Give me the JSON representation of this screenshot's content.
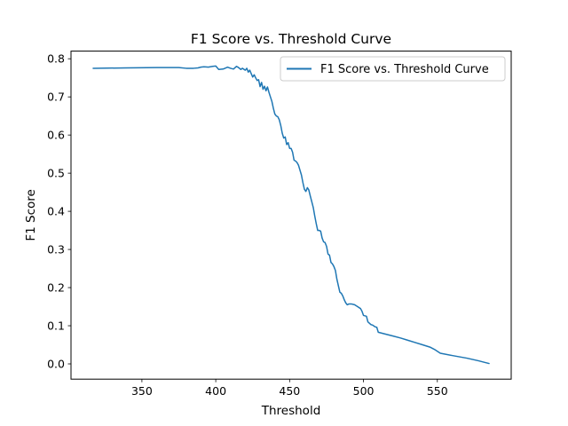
{
  "chart_data": {
    "type": "line",
    "title": "F1 Score vs. Threshold Curve",
    "xlabel": "Threshold",
    "ylabel": "F1 Score",
    "xlim": [
      302,
      600
    ],
    "ylim": [
      -0.04,
      0.82
    ],
    "xticks": [
      350,
      400,
      450,
      500,
      550
    ],
    "xtick_labels": [
      "350",
      "400",
      "450",
      "500",
      "550"
    ],
    "yticks": [
      0.0,
      0.1,
      0.2,
      0.3,
      0.4,
      0.5,
      0.6,
      0.7,
      0.8
    ],
    "ytick_labels": [
      "0.0",
      "0.1",
      "0.2",
      "0.3",
      "0.4",
      "0.5",
      "0.6",
      "0.7",
      "0.8"
    ],
    "grid": false,
    "legend_position": "top-right",
    "series": [
      {
        "name": "F1 Score vs. Threshold Curve",
        "color": "#1f77b4",
        "x": [
          317,
          340,
          360,
          375,
          380,
          385,
          388,
          390,
          392,
          395,
          398,
          400,
          402,
          405,
          408,
          410,
          412,
          414,
          415,
          417,
          418,
          420,
          421,
          422,
          423,
          425,
          426,
          427,
          428,
          429,
          430,
          431,
          432,
          433,
          434,
          435,
          436,
          437,
          438,
          439,
          440,
          441,
          442,
          443,
          444,
          445,
          446,
          447,
          448,
          449,
          450,
          451,
          452,
          453,
          454,
          455,
          456,
          457,
          458,
          459,
          460,
          461,
          462,
          463,
          464,
          465,
          466,
          467,
          468,
          469,
          470,
          471,
          472,
          473,
          474,
          475,
          476,
          477,
          478,
          479,
          480,
          481,
          482,
          483,
          484,
          485,
          486,
          487,
          488,
          489,
          490,
          492,
          494,
          496,
          498,
          499,
          500,
          502,
          503,
          505,
          506,
          508,
          509,
          510,
          515,
          520,
          525,
          530,
          535,
          540,
          545,
          548,
          552,
          560,
          570,
          578,
          582,
          585
        ],
        "y": [
          0.775,
          0.776,
          0.777,
          0.777,
          0.775,
          0.775,
          0.776,
          0.778,
          0.779,
          0.778,
          0.78,
          0.781,
          0.772,
          0.773,
          0.778,
          0.775,
          0.773,
          0.78,
          0.778,
          0.772,
          0.775,
          0.77,
          0.775,
          0.765,
          0.77,
          0.752,
          0.758,
          0.75,
          0.743,
          0.745,
          0.727,
          0.738,
          0.72,
          0.728,
          0.716,
          0.726,
          0.712,
          0.7,
          0.688,
          0.67,
          0.655,
          0.65,
          0.648,
          0.64,
          0.625,
          0.605,
          0.592,
          0.595,
          0.575,
          0.58,
          0.565,
          0.565,
          0.555,
          0.534,
          0.532,
          0.528,
          0.521,
          0.508,
          0.495,
          0.475,
          0.458,
          0.452,
          0.462,
          0.456,
          0.44,
          0.425,
          0.41,
          0.388,
          0.368,
          0.35,
          0.35,
          0.348,
          0.33,
          0.32,
          0.318,
          0.308,
          0.288,
          0.285,
          0.266,
          0.262,
          0.255,
          0.245,
          0.222,
          0.205,
          0.188,
          0.185,
          0.178,
          0.168,
          0.16,
          0.155,
          0.157,
          0.157,
          0.155,
          0.15,
          0.145,
          0.138,
          0.127,
          0.125,
          0.11,
          0.103,
          0.102,
          0.097,
          0.096,
          0.083,
          0.078,
          0.073,
          0.068,
          0.062,
          0.056,
          0.05,
          0.044,
          0.038,
          0.028,
          0.022,
          0.015,
          0.008,
          0.004,
          0.001
        ]
      }
    ]
  }
}
